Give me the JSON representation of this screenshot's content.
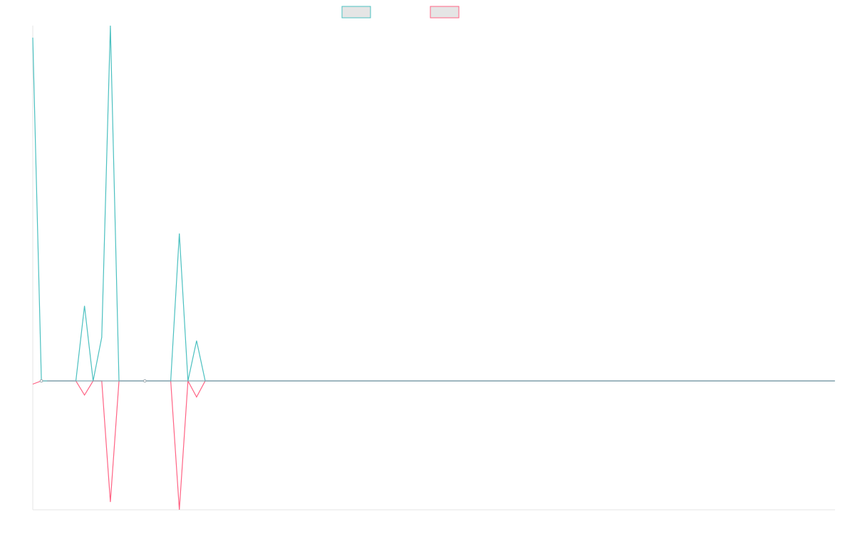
{
  "chart_data": {
    "type": "line",
    "title": "",
    "xlabel": "",
    "ylabel": "",
    "legend_position": "top-center",
    "grid": false,
    "x_count": 94,
    "ylim": [
      -200,
      530
    ],
    "series": [
      {
        "name": "",
        "color": "#4bc0c0",
        "fill": "#e5e5e5",
        "points": [
          [
            0,
            512
          ],
          [
            1,
            0
          ],
          [
            2,
            0
          ],
          [
            3,
            0
          ],
          [
            4,
            0
          ],
          [
            5,
            0
          ],
          [
            6,
            112
          ],
          [
            7,
            0
          ],
          [
            8,
            65
          ],
          [
            9,
            550
          ],
          [
            10,
            0
          ],
          [
            11,
            0
          ],
          [
            12,
            0
          ],
          [
            13,
            0
          ],
          [
            14,
            0
          ],
          [
            15,
            0
          ],
          [
            16,
            0
          ],
          [
            17,
            220
          ],
          [
            18,
            0
          ],
          [
            19,
            60
          ],
          [
            20,
            0
          ]
        ]
      },
      {
        "name": "",
        "color": "#ff6384",
        "fill": "#e5e5e5",
        "points": [
          [
            0,
            -5
          ],
          [
            1,
            0
          ],
          [
            2,
            0
          ],
          [
            3,
            0
          ],
          [
            4,
            0
          ],
          [
            5,
            0
          ],
          [
            6,
            -22
          ],
          [
            7,
            0
          ],
          [
            8,
            0
          ],
          [
            9,
            -188
          ],
          [
            10,
            0
          ],
          [
            11,
            0
          ],
          [
            12,
            0
          ],
          [
            13,
            0
          ],
          [
            14,
            0
          ],
          [
            15,
            0
          ],
          [
            16,
            0
          ],
          [
            17,
            -200
          ],
          [
            18,
            0
          ],
          [
            19,
            -25
          ],
          [
            20,
            0
          ]
        ]
      }
    ],
    "markers": [
      {
        "x": 1,
        "y": 0
      },
      {
        "x": 13,
        "y": 0
      }
    ]
  }
}
